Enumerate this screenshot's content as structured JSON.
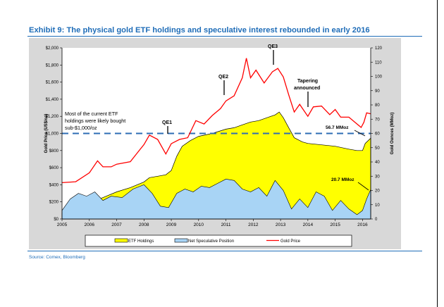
{
  "title": "Exhibit 9: The physical gold ETF holdings and speculative interest rebounded in early 2016",
  "source": "Source: Comex, Bloomberg",
  "colors": {
    "title": "#1f6db8",
    "etf": "#ffff00",
    "spec": "#a8d4f5",
    "gold": "#ff0000",
    "dashed": "#2e6db4"
  },
  "chart_data": {
    "type": "area",
    "x_ticks": [
      "2005",
      "2006",
      "2007",
      "2008",
      "2009",
      "2010",
      "2011",
      "2012",
      "2013",
      "2014",
      "2015",
      "2016"
    ],
    "ylabel_left": "Gold Price (US$/oz)",
    "ylabel_right": "Gold Ounces (MMoz)",
    "yticks_left": [
      "$0",
      "$200",
      "$400",
      "$600",
      "$800",
      "$1,000",
      "$1,200",
      "$1,400",
      "$1,600",
      "$1,800",
      "$2,000"
    ],
    "yticks_right": [
      "0",
      "10",
      "20",
      "30",
      "40",
      "50",
      "60",
      "70",
      "80",
      "90",
      "100",
      "110",
      "120"
    ],
    "ylim_left": [
      0,
      2000
    ],
    "ylim_right": [
      0,
      120
    ],
    "xlim": [
      2005.0,
      2016.3
    ],
    "reference_line": {
      "axis": "left",
      "value": 1000,
      "style": "dashed"
    },
    "series": [
      {
        "name": "ETF Holdings",
        "axis": "right",
        "kind": "area",
        "x": [
          2005.0,
          2005.2,
          2005.5,
          2005.8,
          2006.0,
          2006.2,
          2006.5,
          2007.0,
          2007.5,
          2008.0,
          2008.2,
          2008.5,
          2008.8,
          2009.0,
          2009.2,
          2009.4,
          2009.7,
          2010.0,
          2010.5,
          2011.0,
          2011.3,
          2011.6,
          2011.9,
          2012.2,
          2012.5,
          2012.8,
          2012.95,
          2013.1,
          2013.3,
          2013.5,
          2013.8,
          2014.0,
          2014.5,
          2015.0,
          2015.5,
          2015.8,
          2016.0,
          2016.1,
          2016.3
        ],
        "values": [
          4,
          6,
          7,
          8,
          10,
          13,
          15,
          19,
          22,
          26,
          29,
          30,
          31,
          34,
          44,
          51,
          55,
          58,
          60,
          63,
          64,
          66,
          68,
          69,
          71,
          73,
          75,
          71,
          64,
          57,
          54,
          53,
          52,
          51,
          49,
          48,
          48,
          53,
          56.7
        ]
      },
      {
        "name": "Net Speculative Position",
        "axis": "right",
        "kind": "area",
        "x": [
          2005.0,
          2005.3,
          2005.6,
          2005.9,
          2006.2,
          2006.5,
          2006.8,
          2007.2,
          2007.6,
          2008.0,
          2008.3,
          2008.6,
          2008.9,
          2009.2,
          2009.5,
          2009.8,
          2010.1,
          2010.4,
          2010.7,
          2011.0,
          2011.3,
          2011.6,
          2011.9,
          2012.2,
          2012.5,
          2012.8,
          2013.1,
          2013.4,
          2013.7,
          2014.0,
          2014.3,
          2014.6,
          2014.9,
          2015.2,
          2015.5,
          2015.8,
          2016.0,
          2016.15,
          2016.3
        ],
        "values": [
          6,
          14,
          18,
          16,
          19,
          13,
          16,
          15,
          21,
          24,
          18,
          9,
          8,
          18,
          21,
          19,
          23,
          22,
          25,
          28,
          27,
          21,
          19,
          22,
          16,
          27,
          20,
          7,
          14,
          8,
          19,
          16,
          6,
          13,
          7,
          3,
          6,
          14,
          20.7
        ]
      },
      {
        "name": "Gold Price",
        "axis": "left",
        "kind": "line",
        "x": [
          2005.0,
          2005.5,
          2006.0,
          2006.3,
          2006.5,
          2006.8,
          2007.0,
          2007.5,
          2007.8,
          2008.0,
          2008.2,
          2008.5,
          2008.8,
          2009.0,
          2009.3,
          2009.6,
          2009.9,
          2010.2,
          2010.5,
          2010.8,
          2011.0,
          2011.3,
          2011.6,
          2011.75,
          2011.9,
          2012.1,
          2012.4,
          2012.7,
          2012.9,
          2013.1,
          2013.3,
          2013.5,
          2013.7,
          2014.0,
          2014.2,
          2014.5,
          2014.8,
          2015.0,
          2015.2,
          2015.5,
          2015.8,
          2015.95,
          2016.05,
          2016.15,
          2016.3
        ],
        "values": [
          425,
          435,
          540,
          680,
          610,
          610,
          640,
          670,
          790,
          870,
          980,
          930,
          760,
          880,
          930,
          950,
          1150,
          1110,
          1210,
          1290,
          1380,
          1440,
          1650,
          1880,
          1650,
          1740,
          1590,
          1720,
          1760,
          1660,
          1450,
          1250,
          1340,
          1200,
          1310,
          1320,
          1220,
          1280,
          1190,
          1190,
          1110,
          1070,
          1130,
          1240,
          1230
        ]
      }
    ],
    "annotations": {
      "note": "Most of the current ETF holdings were likely bought sub-$1,000/oz",
      "qe1": "QE1",
      "qe2": "QE2",
      "qe3": "QE3",
      "tapering": "Tapering announced",
      "etf_label": "56.7 MMoz",
      "spec_label": "20.7 MMoz"
    },
    "legend": {
      "position": "bottom",
      "items": [
        "ETF Holdings",
        "Net Speculative Position",
        "Gold Price"
      ]
    }
  }
}
